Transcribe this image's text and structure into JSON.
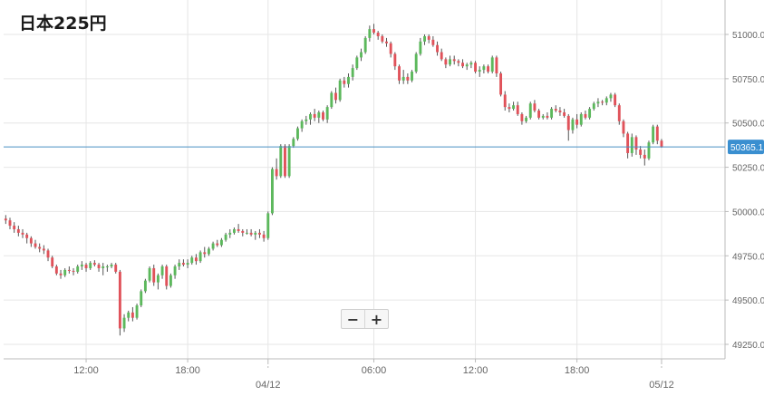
{
  "title": "日本225円",
  "zoom": {
    "minus": "−",
    "plus": "+"
  },
  "colors": {
    "up": "#5cb85c",
    "down": "#e0525a",
    "wick": "#555555",
    "grid": "#e6e6e6",
    "axis": "#bbbbbb",
    "price_line": "#4a90c4",
    "price_tag": "#3a8fd0",
    "text": "#666666"
  },
  "chart_data": {
    "type": "candlestick",
    "title": "日本225円",
    "y_axis": {
      "position": "right",
      "ticks": [
        49250,
        49500,
        49750,
        50000,
        50250,
        50500,
        50750,
        51000
      ],
      "tick_labels": [
        "49250.0",
        "49500.0",
        "49750.0",
        "50000.0",
        "50250.0",
        "50500.0",
        "50750.0",
        "51000.0"
      ],
      "range": [
        49200,
        51150
      ]
    },
    "x_axis": {
      "start_index": -0.5,
      "end_index": 170,
      "ticks": [
        {
          "index": 19,
          "label": "12:00",
          "date": ""
        },
        {
          "index": 43,
          "label": "18:00",
          "date": ""
        },
        {
          "index": 62,
          "label": "",
          "date": "04/12"
        },
        {
          "index": 87,
          "label": "06:00",
          "date": ""
        },
        {
          "index": 111,
          "label": "12:00",
          "date": ""
        },
        {
          "index": 135,
          "label": "18:00",
          "date": ""
        },
        {
          "index": 155,
          "label": "",
          "date": "05/12"
        }
      ]
    },
    "current_price": {
      "value": 50365.1,
      "label": "50365.1"
    },
    "candles": [
      [
        49960,
        49980,
        49930,
        49950
      ],
      [
        49950,
        49965,
        49900,
        49920
      ],
      [
        49920,
        49940,
        49880,
        49900
      ],
      [
        49900,
        49920,
        49860,
        49880
      ],
      [
        49880,
        49900,
        49850,
        49870
      ],
      [
        49870,
        49880,
        49820,
        49850
      ],
      [
        49850,
        49860,
        49800,
        49820
      ],
      [
        49820,
        49840,
        49790,
        49800
      ],
      [
        49800,
        49820,
        49770,
        49790
      ],
      [
        49790,
        49810,
        49760,
        49780
      ],
      [
        49780,
        49790,
        49720,
        49740
      ],
      [
        49740,
        49750,
        49680,
        49690
      ],
      [
        49690,
        49700,
        49640,
        49650
      ],
      [
        49650,
        49670,
        49620,
        49640
      ],
      [
        49640,
        49680,
        49630,
        49670
      ],
      [
        49670,
        49690,
        49650,
        49665
      ],
      [
        49665,
        49680,
        49640,
        49660
      ],
      [
        49660,
        49700,
        49650,
        49690
      ],
      [
        49690,
        49720,
        49670,
        49700
      ],
      [
        49700,
        49710,
        49660,
        49680
      ],
      [
        49680,
        49720,
        49670,
        49710
      ],
      [
        49710,
        49725,
        49690,
        49700
      ],
      [
        49700,
        49710,
        49660,
        49680
      ],
      [
        49680,
        49710,
        49640,
        49690
      ],
      [
        49690,
        49700,
        49660,
        49690
      ],
      [
        49690,
        49710,
        49680,
        49700
      ],
      [
        49700,
        49710,
        49650,
        49660
      ],
      [
        49660,
        49670,
        49300,
        49340
      ],
      [
        49340,
        49420,
        49320,
        49400
      ],
      [
        49400,
        49440,
        49380,
        49430
      ],
      [
        49430,
        49460,
        49380,
        49400
      ],
      [
        49400,
        49480,
        49390,
        49470
      ],
      [
        49470,
        49560,
        49460,
        49550
      ],
      [
        49550,
        49620,
        49540,
        49610
      ],
      [
        49610,
        49690,
        49600,
        49680
      ],
      [
        49680,
        49700,
        49580,
        49600
      ],
      [
        49600,
        49650,
        49560,
        49640
      ],
      [
        49640,
        49700,
        49620,
        49690
      ],
      [
        49690,
        49700,
        49560,
        49580
      ],
      [
        49580,
        49650,
        49570,
        49640
      ],
      [
        49640,
        49700,
        49620,
        49690
      ],
      [
        49690,
        49730,
        49670,
        49710
      ],
      [
        49710,
        49730,
        49690,
        49700
      ],
      [
        49700,
        49730,
        49680,
        49710
      ],
      [
        49710,
        49750,
        49700,
        49740
      ],
      [
        49740,
        49760,
        49700,
        49720
      ],
      [
        49720,
        49780,
        49710,
        49770
      ],
      [
        49770,
        49800,
        49740,
        49760
      ],
      [
        49760,
        49800,
        49750,
        49790
      ],
      [
        49790,
        49830,
        49780,
        49820
      ],
      [
        49820,
        49840,
        49800,
        49810
      ],
      [
        49810,
        49850,
        49800,
        49840
      ],
      [
        49840,
        49880,
        49830,
        49870
      ],
      [
        49870,
        49900,
        49850,
        49880
      ],
      [
        49880,
        49910,
        49870,
        49900
      ],
      [
        49900,
        49930,
        49880,
        49890
      ],
      [
        49890,
        49900,
        49860,
        49880
      ],
      [
        49880,
        49900,
        49870,
        49880
      ],
      [
        49880,
        49900,
        49860,
        49870
      ],
      [
        49870,
        49890,
        49840,
        49880
      ],
      [
        49880,
        49900,
        49850,
        49870
      ],
      [
        49870,
        49890,
        49830,
        49850
      ],
      [
        49850,
        50000,
        49840,
        49990
      ],
      [
        49990,
        50250,
        49980,
        50240
      ],
      [
        50240,
        50300,
        50180,
        50200
      ],
      [
        50200,
        50380,
        50190,
        50370
      ],
      [
        50370,
        50380,
        50190,
        50200
      ],
      [
        50200,
        50380,
        50190,
        50370
      ],
      [
        50370,
        50420,
        50360,
        50410
      ],
      [
        50410,
        50480,
        50400,
        50470
      ],
      [
        50470,
        50520,
        50450,
        50510
      ],
      [
        50510,
        50540,
        50490,
        50520
      ],
      [
        50520,
        50560,
        50490,
        50550
      ],
      [
        50550,
        50580,
        50510,
        50530
      ],
      [
        50530,
        50570,
        50500,
        50560
      ],
      [
        50560,
        50570,
        50510,
        50520
      ],
      [
        50520,
        50600,
        50500,
        50590
      ],
      [
        50590,
        50680,
        50580,
        50670
      ],
      [
        50670,
        50700,
        50610,
        50630
      ],
      [
        50630,
        50750,
        50620,
        50740
      ],
      [
        50740,
        50760,
        50700,
        50720
      ],
      [
        50720,
        50780,
        50700,
        50760
      ],
      [
        50760,
        50830,
        50740,
        50810
      ],
      [
        50810,
        50880,
        50800,
        50870
      ],
      [
        50870,
        50920,
        50850,
        50900
      ],
      [
        50900,
        50990,
        50890,
        50980
      ],
      [
        50980,
        51050,
        50960,
        51030
      ],
      [
        51030,
        51060,
        51000,
        51010
      ],
      [
        51010,
        51020,
        50970,
        50990
      ],
      [
        50990,
        51000,
        50950,
        50960
      ],
      [
        50960,
        50980,
        50930,
        50950
      ],
      [
        50950,
        50960,
        50870,
        50890
      ],
      [
        50890,
        50900,
        50800,
        50820
      ],
      [
        50820,
        50830,
        50720,
        50740
      ],
      [
        50740,
        50800,
        50720,
        50760
      ],
      [
        50760,
        50780,
        50720,
        50740
      ],
      [
        50740,
        50800,
        50730,
        50790
      ],
      [
        50790,
        50900,
        50780,
        50890
      ],
      [
        50890,
        50980,
        50880,
        50960
      ],
      [
        50960,
        51000,
        50940,
        50990
      ],
      [
        50990,
        51000,
        50950,
        50970
      ],
      [
        50970,
        50990,
        50930,
        50940
      ],
      [
        50940,
        50960,
        50880,
        50900
      ],
      [
        50900,
        50920,
        50850,
        50860
      ],
      [
        50860,
        50870,
        50810,
        50830
      ],
      [
        50830,
        50880,
        50820,
        50860
      ],
      [
        50860,
        50880,
        50830,
        50850
      ],
      [
        50850,
        50860,
        50820,
        50840
      ],
      [
        50840,
        50860,
        50810,
        50820
      ],
      [
        50820,
        50840,
        50800,
        50830
      ],
      [
        50830,
        50850,
        50810,
        50840
      ],
      [
        50840,
        50850,
        50780,
        50790
      ],
      [
        50790,
        50820,
        50760,
        50800
      ],
      [
        50800,
        50830,
        50780,
        50820
      ],
      [
        50820,
        50830,
        50780,
        50790
      ],
      [
        50790,
        50880,
        50780,
        50870
      ],
      [
        50870,
        50880,
        50760,
        50780
      ],
      [
        50780,
        50790,
        50650,
        50660
      ],
      [
        50660,
        50680,
        50570,
        50590
      ],
      [
        50590,
        50610,
        50560,
        50580
      ],
      [
        50580,
        50620,
        50570,
        50600
      ],
      [
        50600,
        50620,
        50540,
        50550
      ],
      [
        50550,
        50560,
        50490,
        50510
      ],
      [
        50510,
        50540,
        50500,
        50530
      ],
      [
        50530,
        50620,
        50520,
        50610
      ],
      [
        50610,
        50630,
        50560,
        50570
      ],
      [
        50570,
        50580,
        50520,
        50530
      ],
      [
        50530,
        50550,
        50520,
        50540
      ],
      [
        50540,
        50560,
        50520,
        50530
      ],
      [
        50530,
        50590,
        50520,
        50580
      ],
      [
        50580,
        50600,
        50560,
        50570
      ],
      [
        50570,
        50590,
        50540,
        50560
      ],
      [
        50560,
        50580,
        50530,
        50540
      ],
      [
        50540,
        50550,
        50400,
        50460
      ],
      [
        50460,
        50530,
        50440,
        50520
      ],
      [
        50520,
        50550,
        50470,
        50490
      ],
      [
        50490,
        50560,
        50480,
        50550
      ],
      [
        50550,
        50570,
        50520,
        50530
      ],
      [
        50530,
        50590,
        50520,
        50580
      ],
      [
        50580,
        50620,
        50570,
        50610
      ],
      [
        50610,
        50640,
        50590,
        50620
      ],
      [
        50620,
        50630,
        50600,
        50615
      ],
      [
        50615,
        50650,
        50600,
        50640
      ],
      [
        50640,
        50670,
        50620,
        50660
      ],
      [
        50660,
        50670,
        50590,
        50600
      ],
      [
        50600,
        50610,
        50490,
        50510
      ],
      [
        50510,
        50520,
        50420,
        50440
      ],
      [
        50440,
        50450,
        50300,
        50330
      ],
      [
        50330,
        50440,
        50310,
        50420
      ],
      [
        50420,
        50430,
        50320,
        50350
      ],
      [
        50350,
        50370,
        50300,
        50320
      ],
      [
        50320,
        50350,
        50260,
        50300
      ],
      [
        50300,
        50400,
        50290,
        50390
      ],
      [
        50390,
        50490,
        50380,
        50480
      ],
      [
        50480,
        50490,
        50380,
        50400
      ],
      [
        50400,
        50410,
        50360,
        50365
      ]
    ]
  }
}
